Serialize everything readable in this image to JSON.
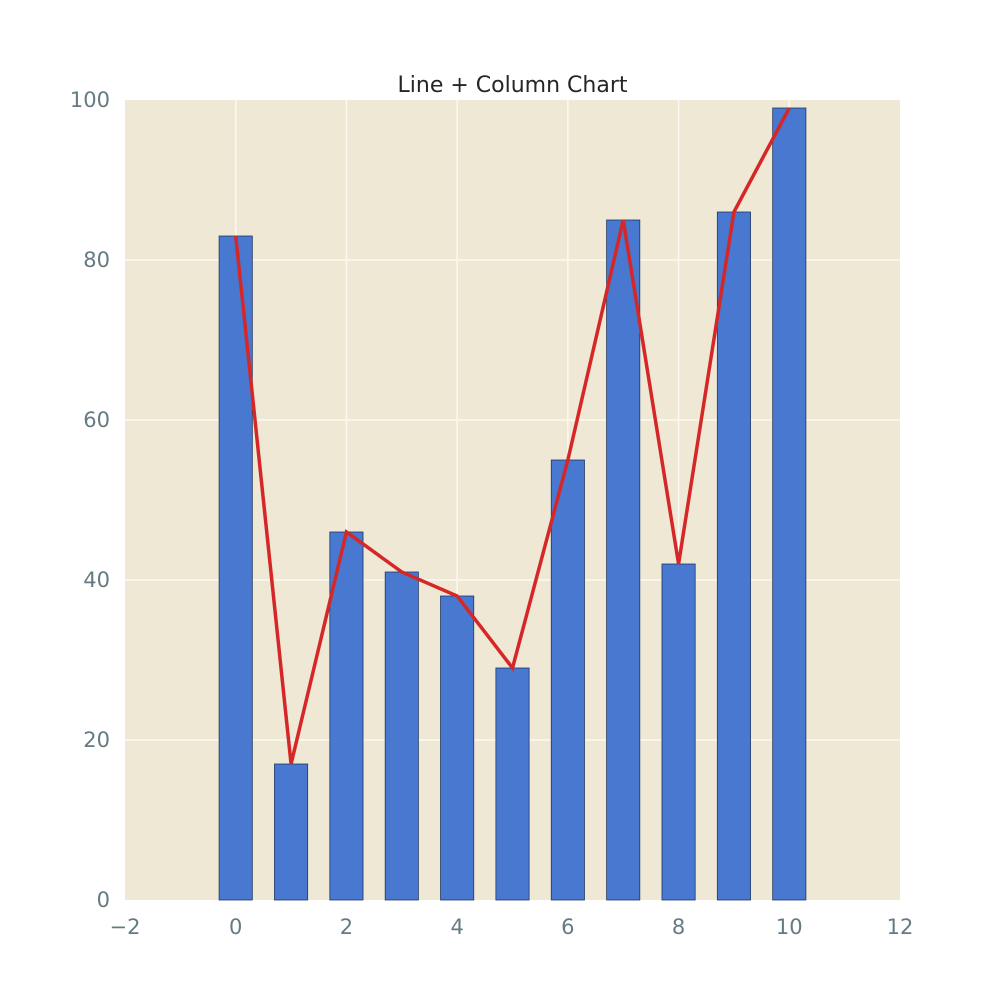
{
  "chart_data": {
    "type": "bar",
    "title": "Line + Column Chart",
    "xlabel": "",
    "ylabel": "",
    "xlim": [
      -2,
      12
    ],
    "ylim": [
      0,
      100
    ],
    "xticks": [
      -2,
      0,
      2,
      4,
      6,
      8,
      10,
      12
    ],
    "xtick_labels": [
      "−2",
      "0",
      "2",
      "4",
      "6",
      "8",
      "10",
      "12"
    ],
    "yticks": [
      0,
      20,
      40,
      60,
      80,
      100
    ],
    "ytick_labels": [
      "0",
      "20",
      "40",
      "60",
      "80",
      "100"
    ],
    "grid": true,
    "x": [
      0,
      1,
      2,
      3,
      4,
      5,
      6,
      7,
      8,
      9,
      10
    ],
    "series": [
      {
        "type": "bar",
        "values": [
          83,
          17,
          46,
          41,
          38,
          29,
          55,
          85,
          42,
          86,
          99
        ],
        "color": "#4878cf"
      },
      {
        "type": "line",
        "values": [
          83,
          17,
          46,
          41,
          38,
          29,
          55,
          85,
          42,
          86,
          99
        ],
        "color": "#d62728"
      }
    ],
    "colors": {
      "plot_background": "#efe8d5",
      "grid": "#fbf9f1",
      "bar_edge": "#1f3864",
      "tick_text": "#657b83",
      "title_text": "#262626"
    }
  }
}
